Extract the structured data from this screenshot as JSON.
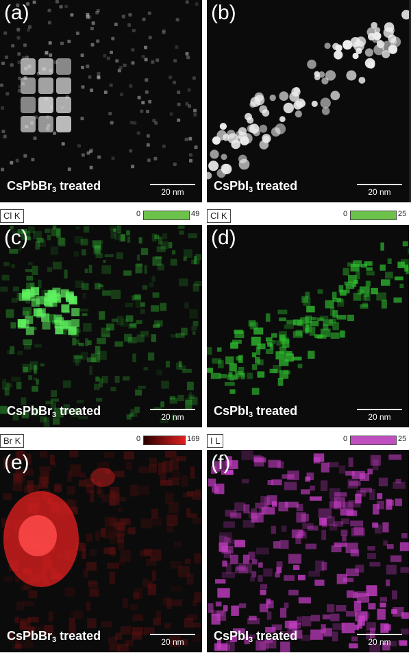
{
  "panels": [
    {
      "letter": "(a)",
      "caption_main": "CsPbBr",
      "caption_sub": "3",
      "caption_end": " treated",
      "scale": "20 nm",
      "color": "#e0e0e0"
    },
    {
      "letter": "(b)",
      "caption_main": "CsPbI",
      "caption_sub": "3",
      "caption_end": " treated",
      "scale": "20 nm",
      "color": "#ededed"
    },
    {
      "letter": "(c)",
      "caption_main": "CsPbBr",
      "caption_sub": "3",
      "caption_end": " treated",
      "scale": "20 nm",
      "color": "#3ad13a"
    },
    {
      "letter": "(d)",
      "caption_main": "CsPbI",
      "caption_sub": "3",
      "caption_end": " treated",
      "scale": "20 nm",
      "color": "#2fc02f"
    },
    {
      "letter": "(e)",
      "caption_main": "CsPbBr",
      "caption_sub": "3",
      "caption_end": " treated",
      "scale": "20 nm",
      "color": "#e52020"
    },
    {
      "letter": "(f)",
      "caption_main": "CsPbI",
      "caption_sub": "3",
      "caption_end": " treated",
      "scale": "20 nm",
      "color": "#cc3fcc"
    }
  ],
  "maps": [
    {
      "element": "Cl K",
      "min": "0",
      "max": "49",
      "color": "#6cc24a"
    },
    {
      "element": "Cl K",
      "min": "0",
      "max": "25",
      "color": "#6cc24a"
    },
    {
      "element": "Br K",
      "min": "0",
      "max": "169",
      "color": "#e02020"
    },
    {
      "element": "I L",
      "min": "0",
      "max": "25",
      "color": "#c050c0"
    }
  ]
}
